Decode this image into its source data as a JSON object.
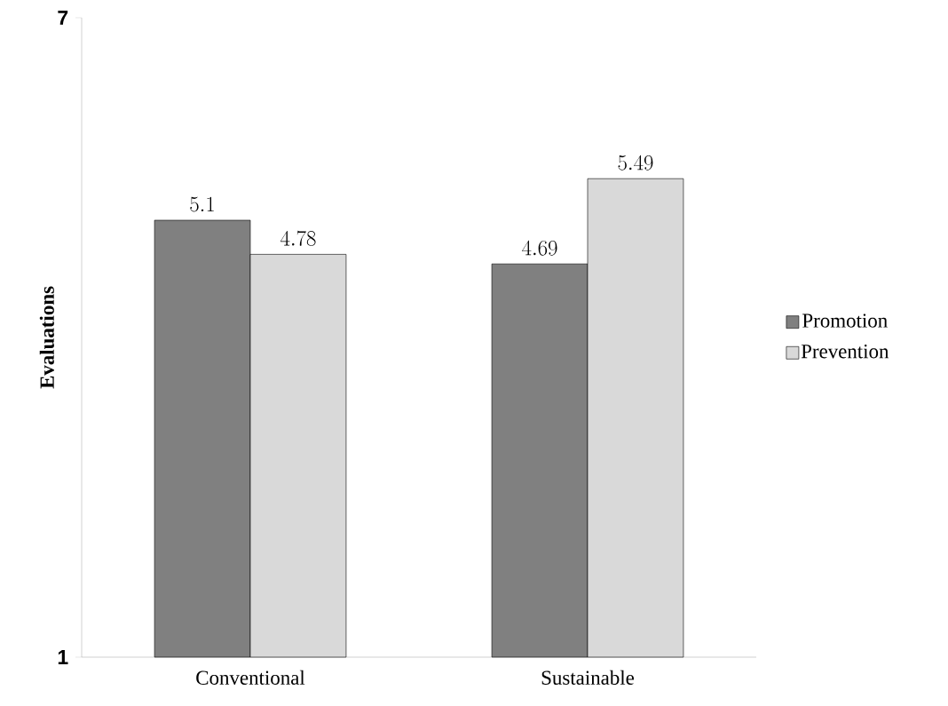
{
  "chart_data": {
    "type": "bar",
    "ylabel": "Evaluations",
    "categories": [
      "Conventional",
      "Sustainable"
    ],
    "series": [
      {
        "name": "Promotion",
        "color": "#808080",
        "values": [
          5.1,
          4.69
        ]
      },
      {
        "name": "Prevention",
        "color": "#d9d9d9",
        "values": [
          4.78,
          5.49
        ]
      }
    ],
    "ylim": [
      1,
      7
    ],
    "yticks": [
      1,
      7
    ],
    "data_labels": true,
    "legend": "right",
    "grid": false
  }
}
